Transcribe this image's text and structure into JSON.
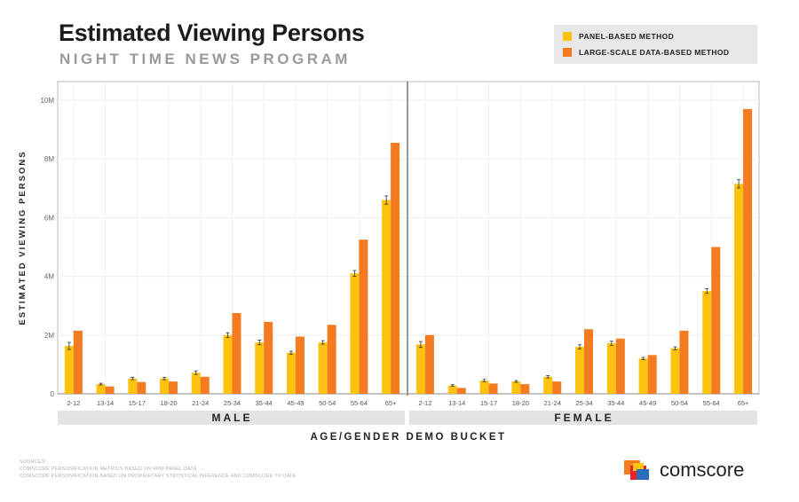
{
  "chart_data": {
    "type": "bar",
    "title": "Estimated Viewing Persons",
    "subtitle": "NIGHT TIME NEWS PROGRAM",
    "ylabel": "ESTIMATED VIEWING PERSONS",
    "xlabel": "AGE/GENDER DEMO BUCKET",
    "ylim": [
      0,
      10.5
    ],
    "yticks": [
      0,
      2,
      4,
      6,
      8,
      10
    ],
    "ytick_labels": [
      "0",
      "2M",
      "4M",
      "6M",
      "8M",
      "10M"
    ],
    "grid": true,
    "legend_position": "top-right",
    "categories": [
      "2-12",
      "13-14",
      "15-17",
      "18-20",
      "21-24",
      "25-34",
      "35-44",
      "45-49",
      "50-54",
      "55-64",
      "65+"
    ],
    "series_colors": {
      "panel": "#FDC20E",
      "large": "#F47B20"
    },
    "panels": [
      {
        "name": "MALE",
        "series": [
          {
            "name": "PANEL-BASED METHOD",
            "values": [
              1.63,
              0.33,
              0.52,
              0.52,
              0.72,
              2.0,
              1.75,
              1.4,
              1.75,
              4.1,
              6.6
            ],
            "error": [
              0.12,
              0.03,
              0.04,
              0.04,
              0.06,
              0.08,
              0.08,
              0.05,
              0.06,
              0.1,
              0.14
            ]
          },
          {
            "name": "LARGE-SCALE DATA-BASED METHOD",
            "values": [
              2.15,
              0.25,
              0.4,
              0.42,
              0.58,
              2.75,
              2.45,
              1.95,
              2.35,
              5.25,
              8.55
            ]
          }
        ]
      },
      {
        "name": "FEMALE",
        "series": [
          {
            "name": "PANEL-BASED METHOD",
            "values": [
              1.68,
              0.28,
              0.45,
              0.42,
              0.58,
              1.6,
              1.72,
              1.2,
              1.55,
              3.5,
              7.15
            ],
            "error": [
              0.1,
              0.03,
              0.04,
              0.03,
              0.04,
              0.07,
              0.07,
              0.04,
              0.05,
              0.08,
              0.14
            ]
          },
          {
            "name": "LARGE-SCALE DATA-BASED METHOD",
            "values": [
              2.0,
              0.2,
              0.35,
              0.33,
              0.42,
              2.2,
              1.88,
              1.32,
              2.15,
              5.0,
              9.7
            ]
          }
        ]
      }
    ]
  },
  "legend": {
    "panel": "PANEL-BASED METHOD",
    "large": "LARGE-SCALE DATA-BASED METHOD"
  },
  "sources": {
    "heading": "SOURCES:",
    "line1": "COMSCORE PERSONIFICATION METRICS BASED ON RPM PANEL DATA",
    "line2": "COMSCORE PERSONIFICATION BASED ON PROPRIETARY STATISTICAL INFERENCE AND COMSCORE TV DATA"
  },
  "logo": {
    "text": "comscore"
  }
}
